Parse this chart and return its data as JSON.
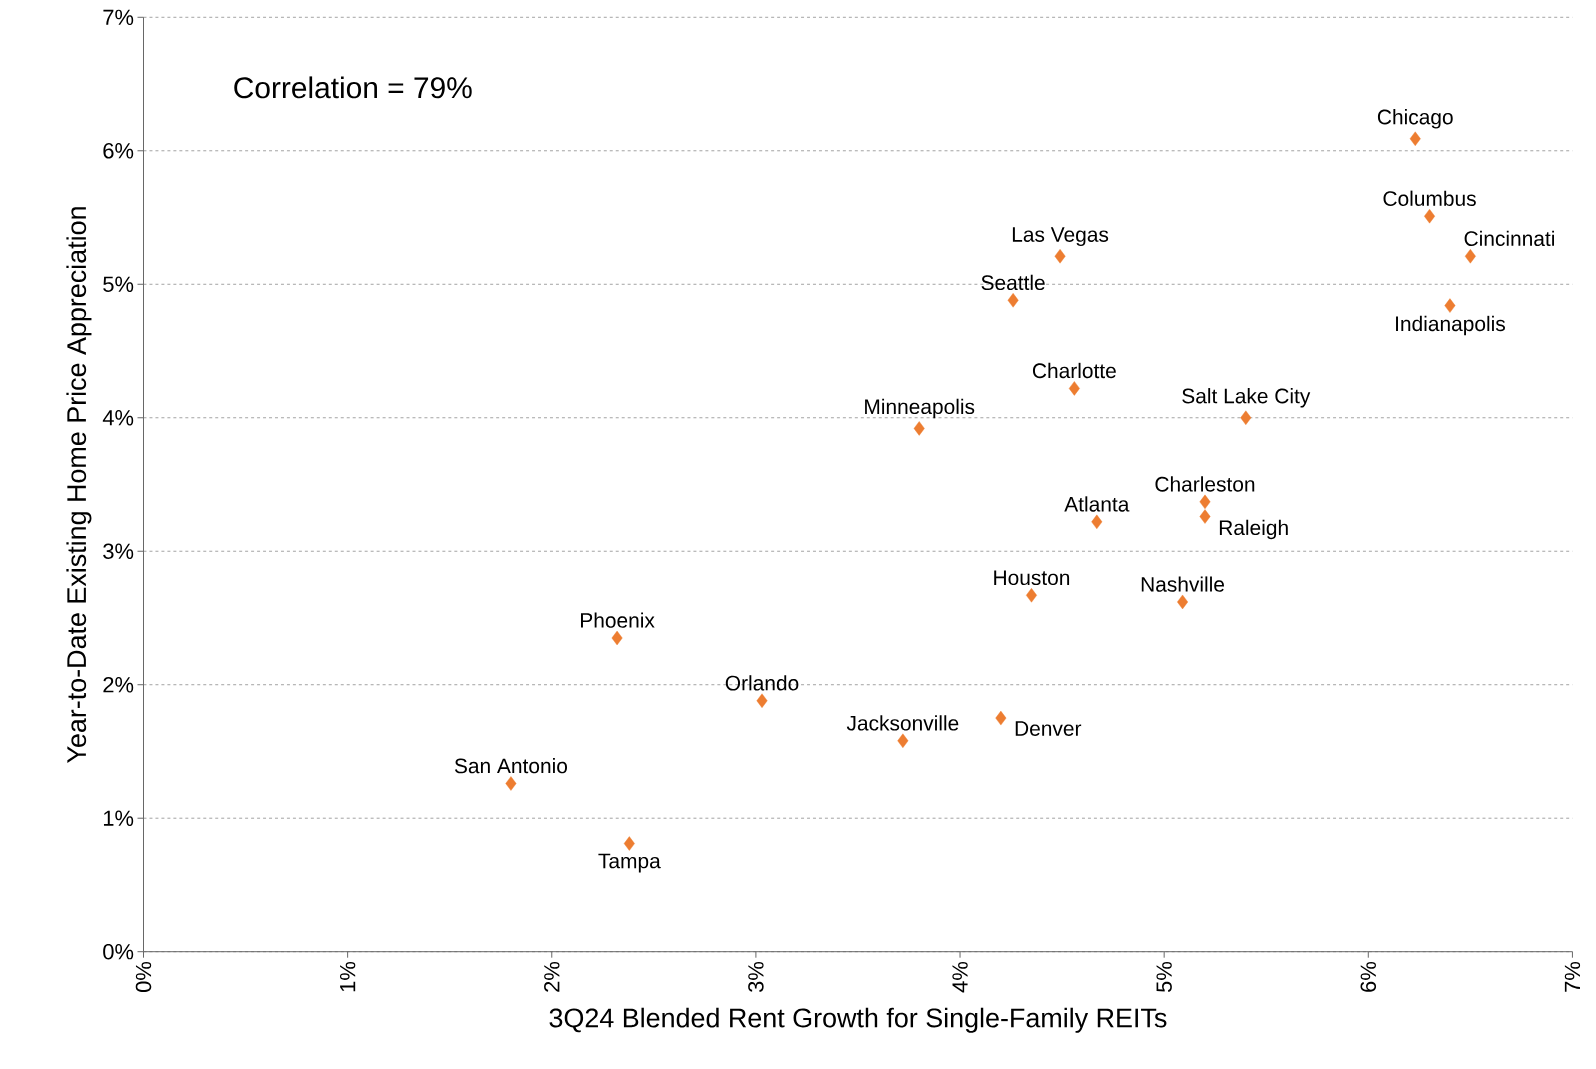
{
  "chart_data": {
    "type": "scatter",
    "xlabel": "3Q24 Blended Rent Growth for Single-Family REITs",
    "ylabel": "Year-to-Date Existing Home Price Appreciation",
    "x": [
      6.23,
      6.3,
      6.5,
      6.4,
      4.49,
      4.26,
      4.56,
      5.4,
      3.8,
      5.2,
      5.2,
      4.67,
      4.35,
      5.09,
      2.32,
      3.03,
      3.72,
      4.2,
      1.8,
      2.38
    ],
    "values": [
      6.09,
      5.51,
      5.21,
      4.84,
      5.21,
      4.88,
      4.22,
      4.0,
      3.92,
      3.37,
      3.26,
      3.22,
      2.67,
      2.62,
      2.35,
      1.88,
      1.58,
      1.75,
      1.26,
      0.81
    ],
    "color": "#ed7d31",
    "marker": "diamond",
    "grid": "y",
    "xlim": [
      0,
      7
    ],
    "ylim": [
      0,
      7
    ],
    "xticks": [
      {
        "value": 0,
        "label": "0%"
      },
      {
        "value": 1,
        "label": "1%"
      },
      {
        "value": 2,
        "label": "2%"
      },
      {
        "value": 3,
        "label": "3%"
      },
      {
        "value": 4,
        "label": "4%"
      },
      {
        "value": 5,
        "label": "5%"
      },
      {
        "value": 6,
        "label": "6%"
      },
      {
        "value": 7,
        "label": "7%"
      }
    ],
    "yticks": [
      {
        "value": 0,
        "label": "0%"
      },
      {
        "value": 1,
        "label": "1%"
      },
      {
        "value": 2,
        "label": "2%"
      },
      {
        "value": 3,
        "label": "3%"
      },
      {
        "value": 4,
        "label": "4%"
      },
      {
        "value": 5,
        "label": "5%"
      },
      {
        "value": 6,
        "label": "6%"
      },
      {
        "value": 7,
        "label": "7%"
      }
    ],
    "annotations": [
      "Correlation = 79%",
      {
        "text": "Chicago",
        "x": 6.23,
        "y": 6.09
      },
      {
        "text": "Columbus",
        "x": 6.3,
        "y": 5.51
      },
      {
        "text": "Cincinnati",
        "x": 6.5,
        "y": 5.21
      },
      {
        "text": "Indianapolis",
        "x": 6.4,
        "y": 4.84
      },
      {
        "text": "Las Vegas",
        "x": 4.49,
        "y": 5.21
      },
      {
        "text": "Seattle",
        "x": 4.26,
        "y": 4.88
      },
      {
        "text": "Charlotte",
        "x": 4.56,
        "y": 4.22
      },
      {
        "text": "Salt Lake City",
        "x": 5.4,
        "y": 4.0
      },
      {
        "text": "Minneapolis",
        "x": 3.8,
        "y": 3.92
      },
      {
        "text": "Charleston",
        "x": 5.2,
        "y": 3.37
      },
      {
        "text": "Raleigh",
        "x": 5.2,
        "y": 3.26
      },
      {
        "text": "Atlanta",
        "x": 4.67,
        "y": 3.22
      },
      {
        "text": "Houston",
        "x": 4.35,
        "y": 2.67
      },
      {
        "text": "Nashville",
        "x": 5.09,
        "y": 2.62
      },
      {
        "text": "Phoenix",
        "x": 2.32,
        "y": 2.35
      },
      {
        "text": "Orlando",
        "x": 3.03,
        "y": 1.88
      },
      {
        "text": "Jacksonville",
        "x": 3.72,
        "y": 1.58
      },
      {
        "text": "Denver",
        "x": 4.2,
        "y": 1.75
      },
      {
        "text": "San Antonio",
        "x": 1.8,
        "y": 1.26
      },
      {
        "text": "Tampa",
        "x": 2.38,
        "y": 0.81
      }
    ]
  }
}
